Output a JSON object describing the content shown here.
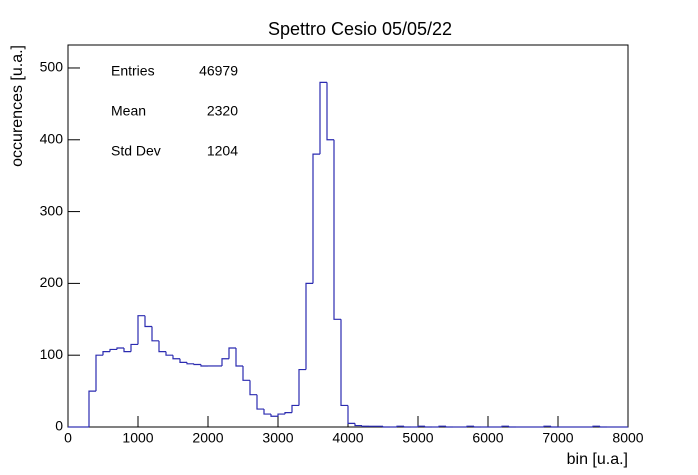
{
  "chart_data": {
    "type": "histogram",
    "title": "Spettro Cesio 05/05/22",
    "x_label": "bin [u.a.]",
    "y_label": "occurences [u.a.]",
    "color": "#2b2bb0",
    "bins": [
      0,
      100,
      200,
      300,
      400,
      500,
      600,
      700,
      800,
      900,
      1000,
      1100,
      1200,
      1300,
      1400,
      1500,
      1600,
      1700,
      1800,
      1900,
      2000,
      2100,
      2200,
      2300,
      2400,
      2500,
      2600,
      2700,
      2800,
      2900,
      3000,
      3100,
      3200,
      3300,
      3400,
      3500,
      3600,
      3700,
      3800,
      3900,
      4000,
      4100,
      4200,
      4300,
      4400,
      4500,
      4600,
      4700,
      4800,
      4900,
      5000,
      5100,
      5200,
      5300,
      5400,
      5500,
      5600,
      5700,
      5800,
      5900,
      6000,
      6100,
      6200,
      6300,
      6400,
      6500,
      6600,
      6700,
      6800,
      6900,
      7000,
      7100,
      7200,
      7300,
      7400,
      7500,
      7600,
      7700,
      7800,
      7900,
      8000
    ],
    "values": [
      0,
      0,
      0,
      50,
      100,
      105,
      108,
      110,
      105,
      115,
      155,
      140,
      120,
      105,
      100,
      95,
      90,
      88,
      87,
      85,
      85,
      85,
      95,
      110,
      85,
      65,
      45,
      25,
      18,
      15,
      18,
      20,
      30,
      80,
      200,
      380,
      480,
      400,
      150,
      30,
      5,
      2,
      1,
      1,
      1,
      0,
      0,
      1,
      0,
      0,
      1,
      0,
      0,
      1,
      0,
      0,
      0,
      1,
      0,
      0,
      0,
      0,
      1,
      0,
      0,
      0,
      0,
      0,
      1,
      0,
      0,
      0,
      0,
      0,
      0,
      1,
      0,
      0,
      0,
      0
    ],
    "xlim": [
      0,
      8000
    ],
    "ylim": [
      0,
      532
    ],
    "xticks": [
      0,
      1000,
      2000,
      3000,
      4000,
      5000,
      6000,
      7000,
      8000
    ],
    "yticks": [
      0,
      100,
      200,
      300,
      400,
      500
    ],
    "stats": [
      {
        "label": "Entries",
        "value": "46979"
      },
      {
        "label": "Mean",
        "value": "2320"
      },
      {
        "label": "Std Dev",
        "value": "1204"
      }
    ]
  }
}
